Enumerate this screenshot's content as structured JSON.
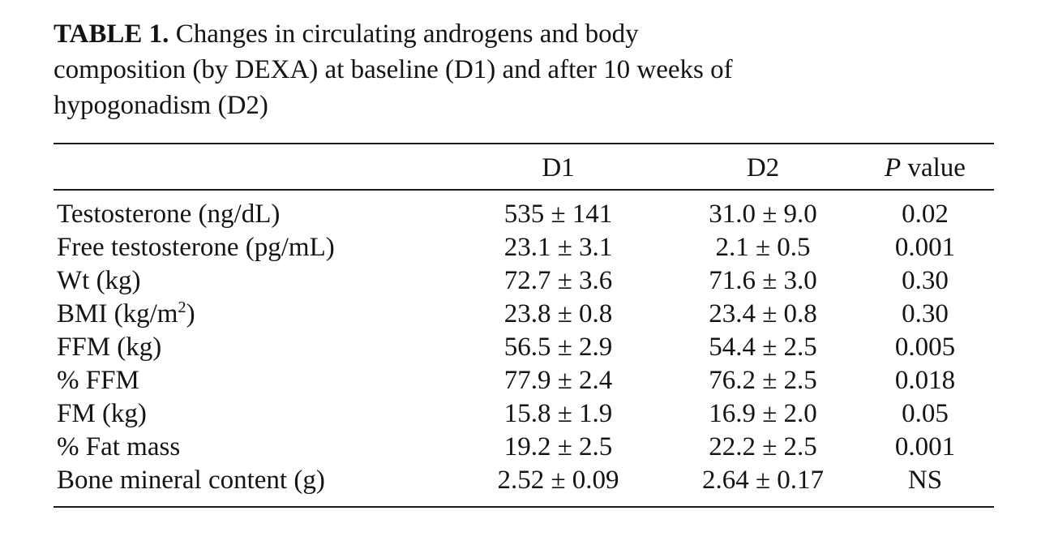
{
  "caption": {
    "label": "TABLE 1.",
    "line1_rest": " Changes in circulating androgens and body",
    "line2": "composition (by DEXA) at baseline (D1) and after 10 weeks of",
    "line3": "hypogonadism (D2)"
  },
  "table": {
    "header": {
      "stub": "",
      "d1": "D1",
      "d2": "D2",
      "p_italic": "P",
      "p_rest": " value"
    },
    "rows": [
      {
        "label": "Testosterone (ng/dL)",
        "d1": "535 ± 141",
        "d2": "31.0 ± 9.0",
        "p": "0.02"
      },
      {
        "label": "Free testosterone (pg/mL)",
        "d1": "23.1 ± 3.1",
        "d2": "2.1 ± 0.5",
        "p": "0.001"
      },
      {
        "label": "Wt (kg)",
        "d1": "72.7 ± 3.6",
        "d2": "71.6 ± 3.0",
        "p": "0.30"
      },
      {
        "label": "BMI (kg/m²)",
        "d1": "23.8 ± 0.8",
        "d2": "23.4 ± 0.8",
        "p": "0.30"
      },
      {
        "label": "FFM (kg)",
        "d1": "56.5 ± 2.9",
        "d2": "54.4 ± 2.5",
        "p": "0.005"
      },
      {
        "label": "% FFM",
        "d1": "77.9 ± 2.4",
        "d2": "76.2 ± 2.5",
        "p": "0.018"
      },
      {
        "label": "FM (kg)",
        "d1": "15.8 ± 1.9",
        "d2": "16.9 ± 2.0",
        "p": "0.05"
      },
      {
        "label": "% Fat mass",
        "d1": "19.2 ± 2.5",
        "d2": "22.2 ± 2.5",
        "p": "0.001"
      },
      {
        "label": "Bone mineral content (g)",
        "d1": "2.52 ± 0.09",
        "d2": "2.64 ± 0.17",
        "p": "NS"
      }
    ]
  },
  "chart_data": {
    "type": "table",
    "title": "TABLE 1. Changes in circulating androgens and body composition (by DEXA) at baseline (D1) and after 10 weeks of hypogonadism (D2)",
    "columns": [
      "",
      "D1",
      "D2",
      "P value"
    ],
    "rows": [
      [
        "Testosterone (ng/dL)",
        "535 ± 141",
        "31.0 ± 9.0",
        "0.02"
      ],
      [
        "Free testosterone (pg/mL)",
        "23.1 ± 3.1",
        "2.1 ± 0.5",
        "0.001"
      ],
      [
        "Wt (kg)",
        "72.7 ± 3.6",
        "71.6 ± 3.0",
        "0.30"
      ],
      [
        "BMI (kg/m²)",
        "23.8 ± 0.8",
        "23.4 ± 0.8",
        "0.30"
      ],
      [
        "FFM (kg)",
        "56.5 ± 2.9",
        "54.4 ± 2.5",
        "0.005"
      ],
      [
        "% FFM",
        "77.9 ± 2.4",
        "76.2 ± 2.5",
        "0.018"
      ],
      [
        "FM (kg)",
        "15.8 ± 1.9",
        "16.9 ± 2.0",
        "0.05"
      ],
      [
        "% Fat mass",
        "19.2 ± 2.5",
        "22.2 ± 2.5",
        "0.001"
      ],
      [
        "Bone mineral content (g)",
        "2.52 ± 0.09",
        "2.64 ± 0.17",
        "NS"
      ]
    ]
  }
}
